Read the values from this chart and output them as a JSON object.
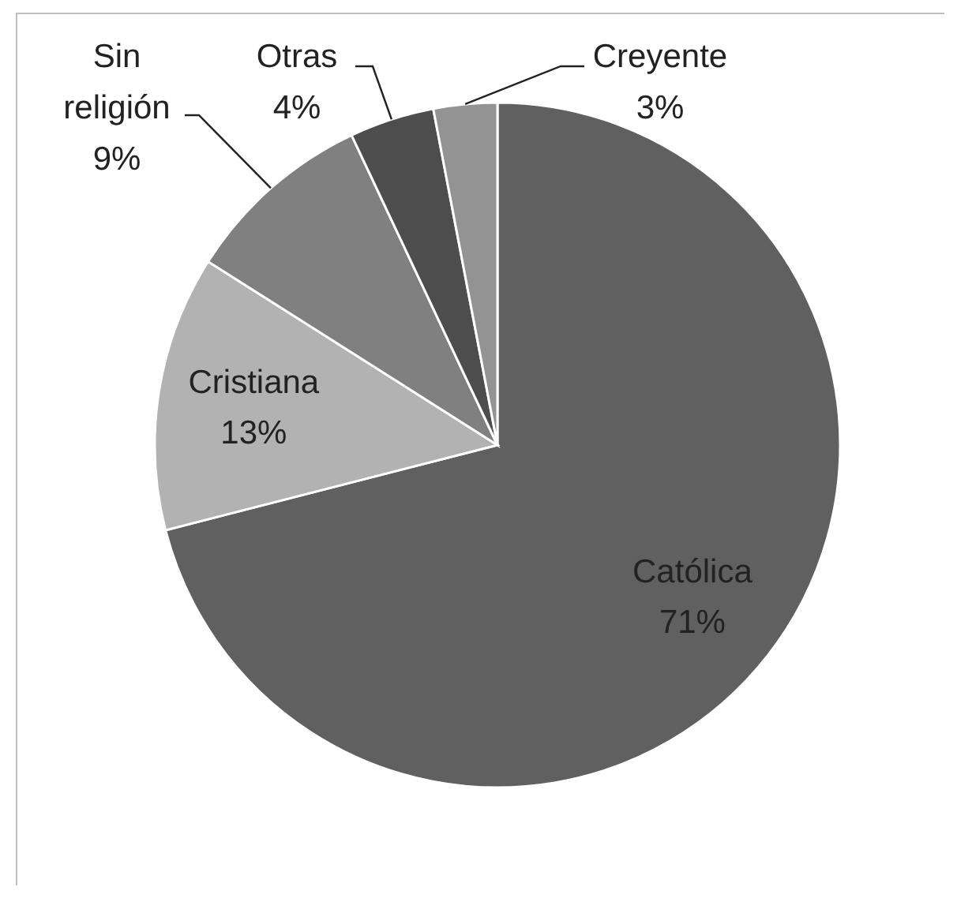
{
  "chart_data": {
    "type": "pie",
    "categories": [
      "Católica",
      "Cristiana",
      "Sin religión",
      "Otras",
      "Creyente"
    ],
    "values": [
      71,
      13,
      9,
      4,
      3
    ],
    "value_labels": [
      "71%",
      "13%",
      "9%",
      "4%",
      "3%"
    ],
    "colors": [
      "#606060",
      "#b2b2b2",
      "#808080",
      "#4d4d4d",
      "#939393"
    ]
  }
}
